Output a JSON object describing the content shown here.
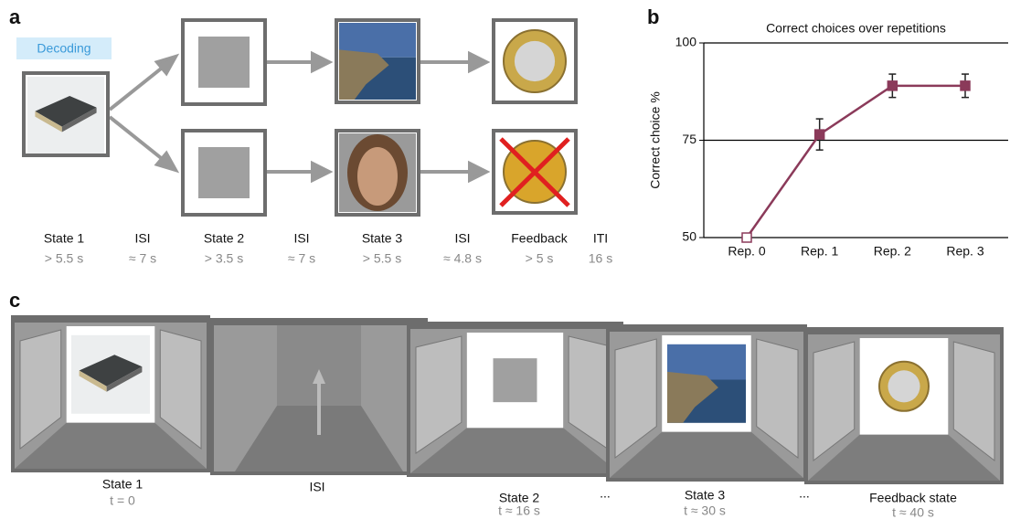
{
  "panel_a": {
    "label": "a",
    "tag": "Decoding",
    "timeline": [
      {
        "name": "State 1",
        "duration": "> 5.5 s"
      },
      {
        "name": "ISI",
        "duration": "≈ 7 s"
      },
      {
        "name": "State 2",
        "duration": "> 3.5 s"
      },
      {
        "name": "ISI",
        "duration": "≈ 7 s"
      },
      {
        "name": "State 3",
        "duration": "> 5.5 s"
      },
      {
        "name": "ISI",
        "duration": "≈ 4.8 s"
      },
      {
        "name": "Feedback",
        "duration": "> 5 s"
      },
      {
        "name": "ITI",
        "duration": "16 s"
      }
    ]
  },
  "chart_data": {
    "label": "b",
    "type": "line",
    "title": "Correct choices over repetitions",
    "ylabel": "Correct choice %",
    "categories": [
      "Rep. 0",
      "Rep. 1",
      "Rep. 2",
      "Rep. 3"
    ],
    "values": [
      50,
      76.5,
      89,
      89
    ],
    "errors": [
      null,
      4,
      3,
      3
    ],
    "color": "#8b3a5a",
    "marker_facecolors": [
      "#ffffff",
      "#8b3a5a",
      "#8b3a5a",
      "#8b3a5a"
    ],
    "ylim": [
      50,
      100
    ],
    "yticks": [
      50,
      75,
      100
    ],
    "grid": true
  },
  "panel_c": {
    "label": "c",
    "frames": [
      {
        "name": "State 1",
        "time": "t = 0"
      },
      {
        "name": "ISI"
      },
      {
        "name": "State 2",
        "time": "t ≈ 16 s"
      },
      {
        "name": "State 3",
        "time": "t ≈ 30 s"
      },
      {
        "name": "Feedback state",
        "time": "t ≈ 40 s"
      }
    ],
    "ellipses": [
      "...",
      "..."
    ]
  }
}
